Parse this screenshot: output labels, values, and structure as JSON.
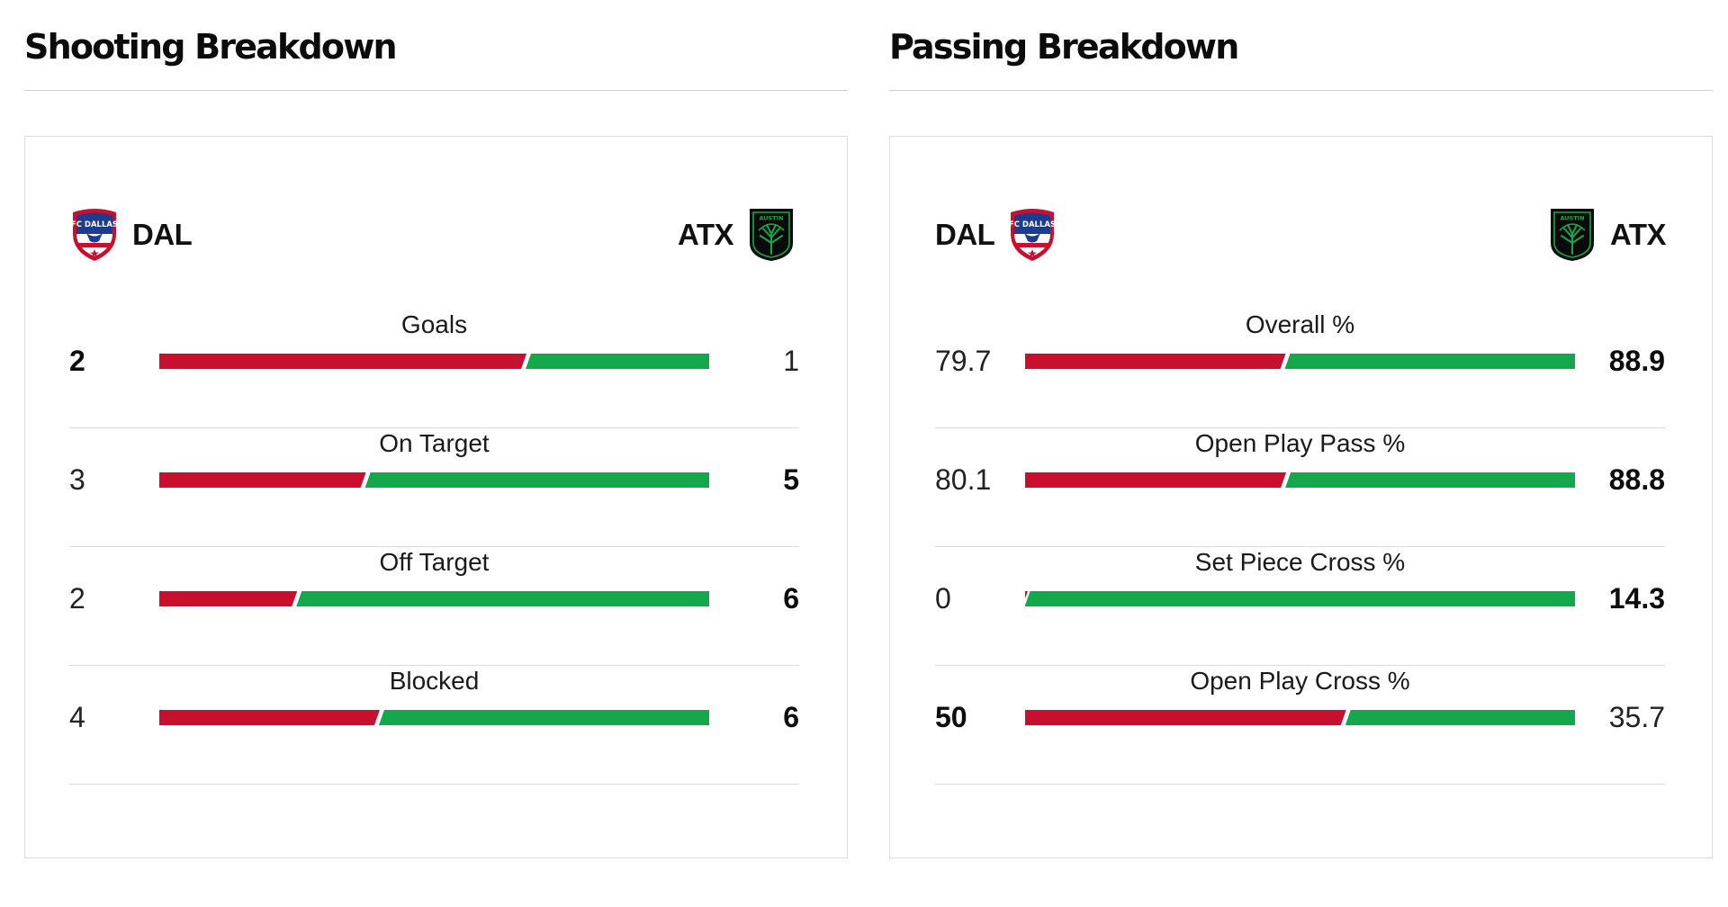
{
  "colors": {
    "home": "#c8102e",
    "away": "#12a84b"
  },
  "teams": {
    "home": {
      "abbr": "DAL",
      "logo_text": "FC DALLAS",
      "logo_icon": "fc-dallas-crest"
    },
    "away": {
      "abbr": "ATX",
      "logo_text": "AUSTIN",
      "logo_icon": "austin-fc-tree-crest"
    }
  },
  "sections": [
    {
      "id": "shooting",
      "title": "Shooting Breakdown",
      "stats": [
        {
          "label": "Goals",
          "home": "2",
          "away": "1",
          "home_share": 0.667,
          "leader": "home"
        },
        {
          "label": "On Target",
          "home": "3",
          "away": "5",
          "home_share": 0.375,
          "leader": "away"
        },
        {
          "label": "Off Target",
          "home": "2",
          "away": "6",
          "home_share": 0.25,
          "leader": "away"
        },
        {
          "label": "Blocked",
          "home": "4",
          "away": "6",
          "home_share": 0.4,
          "leader": "away"
        }
      ]
    },
    {
      "id": "passing",
      "title": "Passing Breakdown",
      "stats": [
        {
          "label": "Overall %",
          "home": "79.7",
          "away": "88.9",
          "home_share": 0.473,
          "leader": "away"
        },
        {
          "label": "Open Play Pass %",
          "home": "80.1",
          "away": "88.8",
          "home_share": 0.474,
          "leader": "away"
        },
        {
          "label": "Set Piece Cross %",
          "home": "0",
          "away": "14.3",
          "home_share": 0.0,
          "leader": "away"
        },
        {
          "label": "Open Play Cross %",
          "home": "50",
          "away": "35.7",
          "home_share": 0.583,
          "leader": "home"
        }
      ]
    }
  ]
}
